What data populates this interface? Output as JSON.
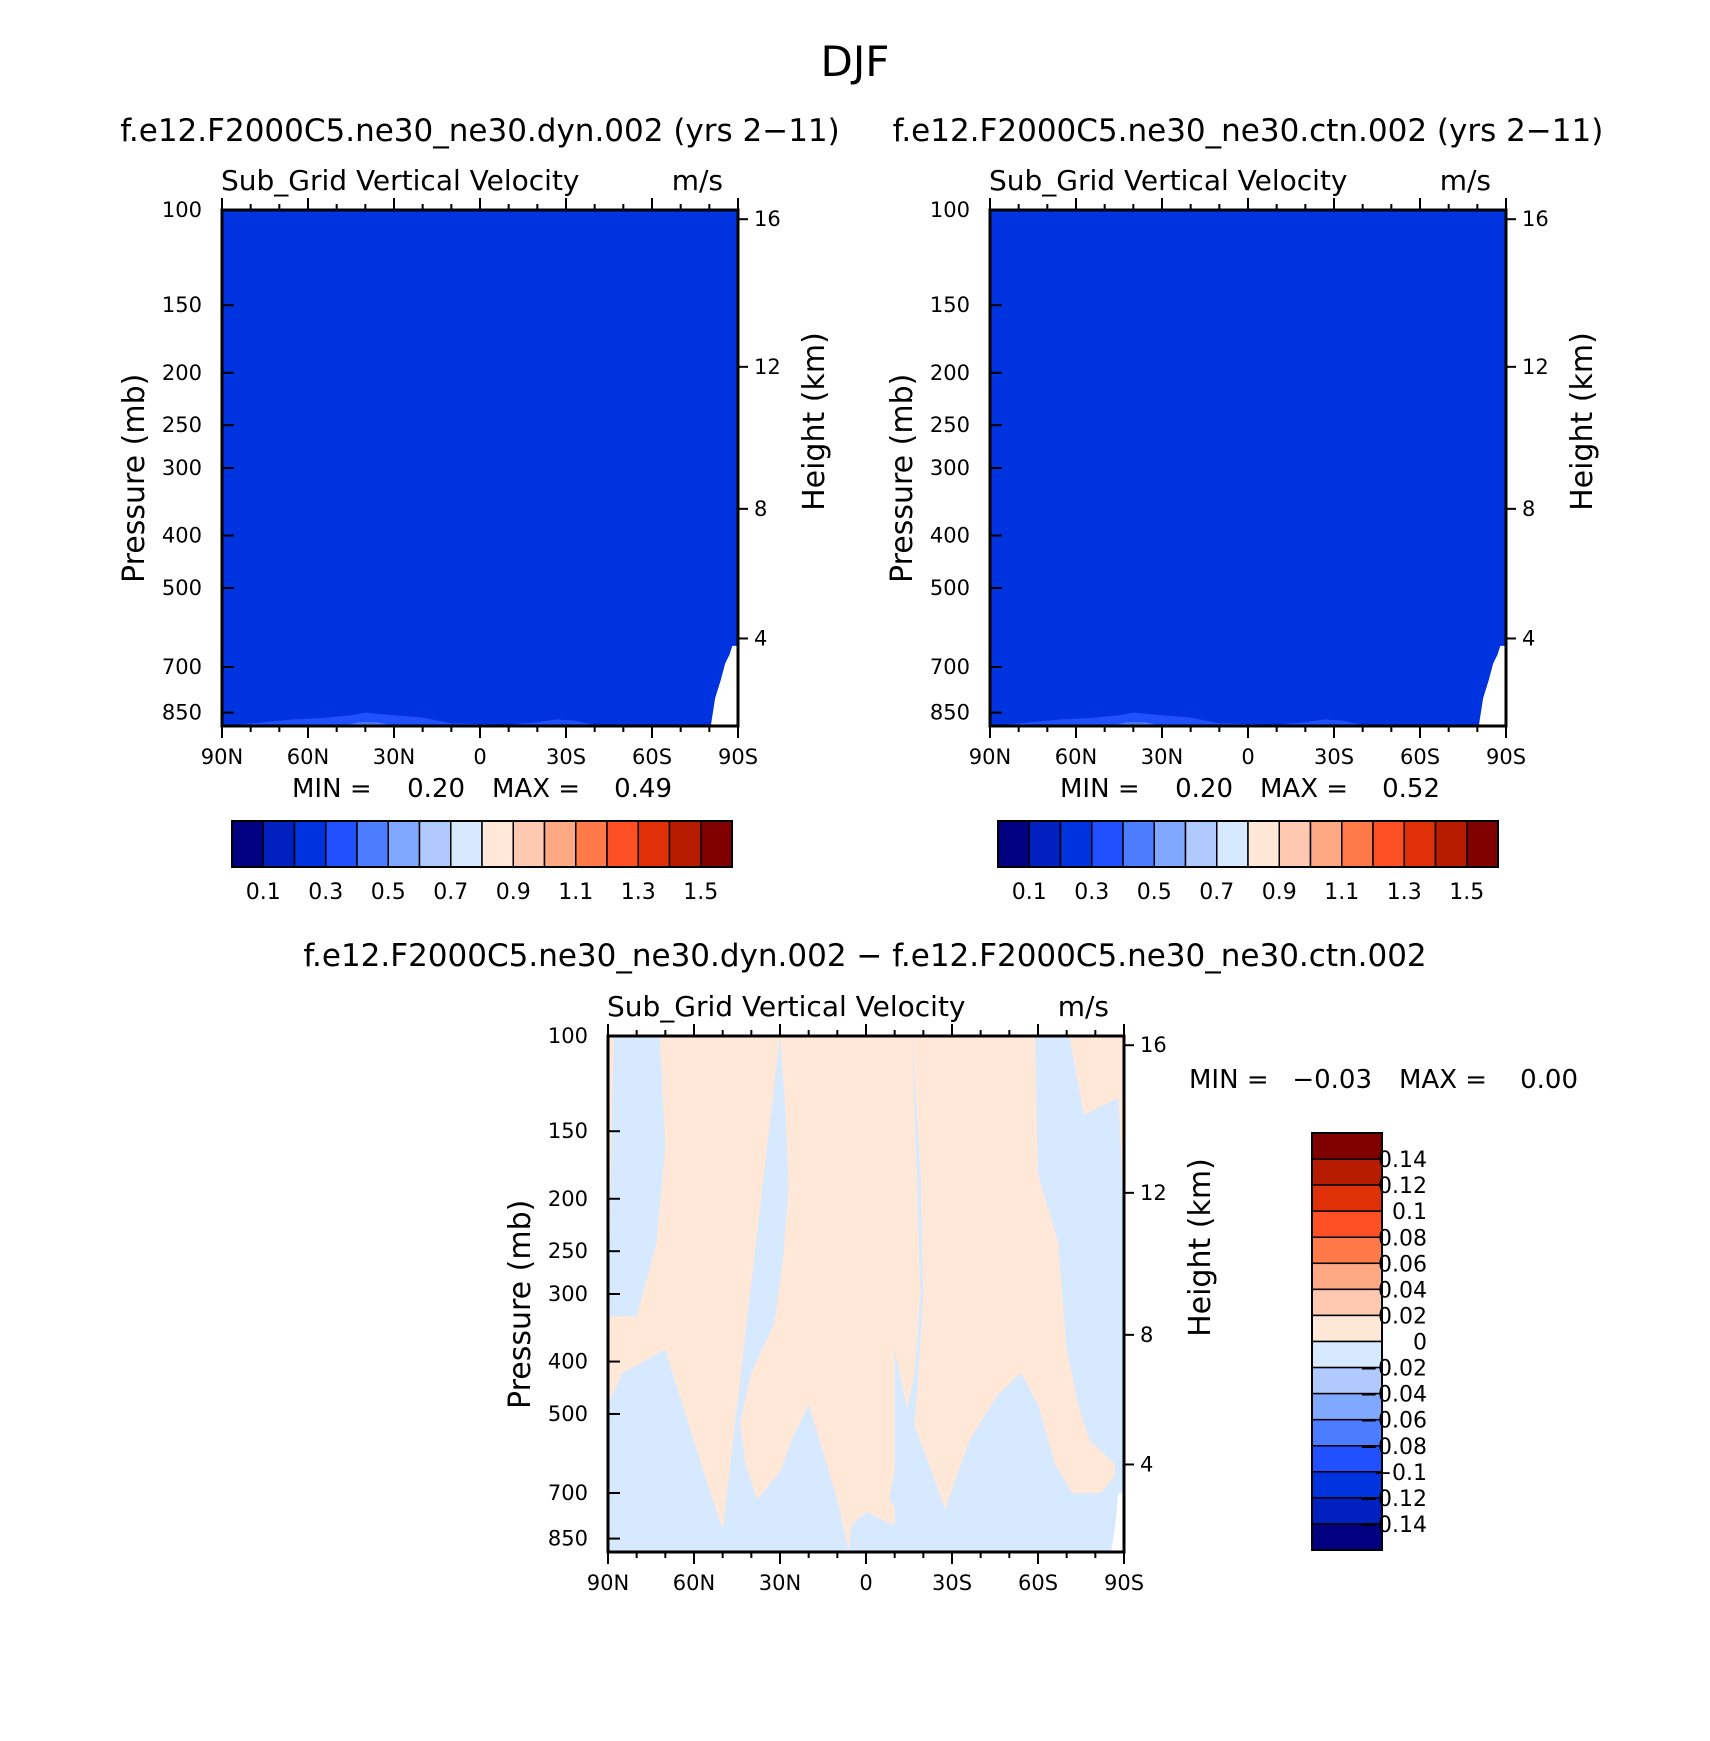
{
  "figure": {
    "title": "DJF",
    "colors": {
      "abs_palette": [
        "#000080",
        "#0020c0",
        "#0033e0",
        "#2050ff",
        "#4c7cff",
        "#80a8ff",
        "#b0caff",
        "#d6e9ff",
        "#ffe8d8",
        "#ffc8b0",
        "#ffa884",
        "#ff7a48",
        "#ff4f24",
        "#e03008",
        "#b81c00",
        "#800000"
      ],
      "field_base": "#0033e0",
      "field_light": "#2050ff",
      "field_lighter": "#4c7cff",
      "diff_positive": "#ffe8d8",
      "diff_negative": "#d6e9ff"
    }
  },
  "chart_data": [
    {
      "type": "heatmap",
      "title": "f.e12.F2000C5.ne30_ne30.dyn.002 (yrs 2−11)",
      "subtitle_left": "Sub_Grid Vertical Velocity",
      "subtitle_right": "m/s",
      "ylabel": "Pressure (mb)",
      "ylabel_right": "Height (km)",
      "xticks": [
        "90N",
        "60N",
        "30N",
        "0",
        "30S",
        "60S",
        "90S"
      ],
      "xlim": [
        -90,
        90
      ],
      "yticks": [
        100,
        150,
        200,
        250,
        300,
        400,
        500,
        700,
        850
      ],
      "ylim": [
        100,
        900
      ],
      "yscale": "log",
      "yticks_right": [
        16,
        12,
        8,
        4
      ],
      "min_label": "MIN =",
      "min_value": "0.20",
      "max_label": "MAX =",
      "max_value": "0.49",
      "dominant_level": [
        0.2,
        0.3
      ],
      "colorbar": {
        "orientation": "horizontal",
        "labels": [
          "0.1",
          "0.3",
          "0.5",
          "0.7",
          "0.9",
          "1.1",
          "1.3",
          "1.5"
        ],
        "levels": [
          0.1,
          0.2,
          0.3,
          0.4,
          0.5,
          0.6,
          0.7,
          0.8,
          0.9,
          1.0,
          1.1,
          1.2,
          1.3,
          1.4,
          1.5
        ]
      }
    },
    {
      "type": "heatmap",
      "title": "f.e12.F2000C5.ne30_ne30.ctn.002 (yrs 2−11)",
      "subtitle_left": "Sub_Grid Vertical Velocity",
      "subtitle_right": "m/s",
      "ylabel": "Pressure (mb)",
      "ylabel_right": "Height (km)",
      "xticks": [
        "90N",
        "60N",
        "30N",
        "0",
        "30S",
        "60S",
        "90S"
      ],
      "xlim": [
        -90,
        90
      ],
      "yticks": [
        100,
        150,
        200,
        250,
        300,
        400,
        500,
        700,
        850
      ],
      "ylim": [
        100,
        900
      ],
      "yscale": "log",
      "yticks_right": [
        16,
        12,
        8,
        4
      ],
      "min_label": "MIN =",
      "min_value": "0.20",
      "max_label": "MAX =",
      "max_value": "0.52",
      "dominant_level": [
        0.2,
        0.3
      ],
      "colorbar": {
        "orientation": "horizontal",
        "labels": [
          "0.1",
          "0.3",
          "0.5",
          "0.7",
          "0.9",
          "1.1",
          "1.3",
          "1.5"
        ],
        "levels": [
          0.1,
          0.2,
          0.3,
          0.4,
          0.5,
          0.6,
          0.7,
          0.8,
          0.9,
          1.0,
          1.1,
          1.2,
          1.3,
          1.4,
          1.5
        ]
      }
    },
    {
      "type": "heatmap",
      "title": "f.e12.F2000C5.ne30_ne30.dyn.002 − f.e12.F2000C5.ne30_ne30.ctn.002",
      "subtitle_left": "Sub_Grid Vertical Velocity",
      "subtitle_right": "m/s",
      "ylabel": "Pressure (mb)",
      "ylabel_right": "Height (km)",
      "xticks": [
        "90N",
        "60N",
        "30N",
        "0",
        "30S",
        "60S",
        "90S"
      ],
      "xlim": [
        -90,
        90
      ],
      "yticks": [
        100,
        150,
        200,
        250,
        300,
        400,
        500,
        700,
        850
      ],
      "ylim": [
        100,
        900
      ],
      "yscale": "log",
      "yticks_right": [
        16,
        12,
        8,
        4
      ],
      "min_label": "MIN =",
      "min_value": "−0.03",
      "max_label": "MAX =",
      "max_value": "0.00",
      "colorbar": {
        "orientation": "vertical",
        "labels": [
          "0.14",
          "0.12",
          "0.1",
          "0.08",
          "0.06",
          "0.04",
          "0.02",
          "0",
          "−0.02",
          "−0.04",
          "−0.06",
          "−0.08",
          "−0.1",
          "−0.12",
          "−0.14"
        ],
        "levels": [
          0.14,
          0.12,
          0.1,
          0.08,
          0.06,
          0.04,
          0.02,
          0,
          -0.02,
          -0.04,
          -0.06,
          -0.08,
          -0.1,
          -0.12,
          -0.14
        ]
      }
    }
  ]
}
